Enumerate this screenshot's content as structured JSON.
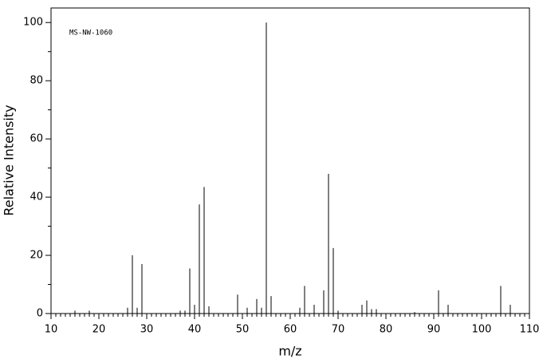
{
  "chart_data": {
    "type": "stem",
    "annotation": "MS-NW-1060",
    "x_label": "m/z",
    "y_label": "Relative Intensity",
    "x": [
      15,
      18,
      26,
      27,
      28,
      29,
      37,
      38,
      39,
      40,
      41,
      42,
      43,
      49,
      51,
      53,
      54,
      55,
      56,
      62,
      63,
      65,
      67,
      68,
      69,
      70,
      75,
      76,
      77,
      78,
      86,
      91,
      93,
      104,
      106
    ],
    "values": [
      1,
      1,
      2,
      20,
      2,
      17,
      1,
      1,
      15.5,
      3,
      37.5,
      43.5,
      2.5,
      6.5,
      2,
      5,
      2,
      100,
      6,
      2,
      9.5,
      3,
      8,
      48,
      22.5,
      1,
      3,
      4.5,
      1.5,
      1.5,
      0.5,
      8,
      3,
      9.5,
      3
    ],
    "color": "#000000",
    "xlim": [
      10,
      110
    ],
    "ylim": [
      0,
      105
    ],
    "xticks": [
      10,
      20,
      30,
      40,
      50,
      60,
      70,
      80,
      90,
      100,
      110
    ],
    "yticks": [
      0,
      20,
      40,
      60,
      80,
      100
    ]
  }
}
